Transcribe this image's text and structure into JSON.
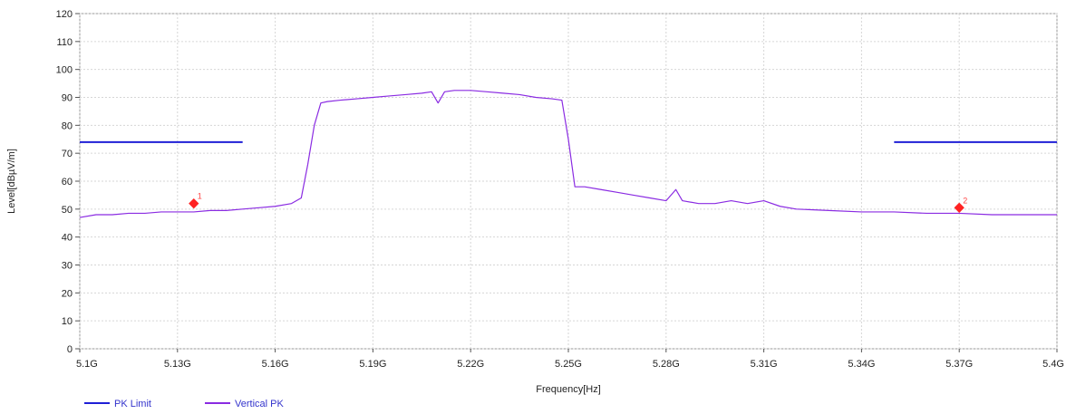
{
  "chart_data": {
    "type": "line",
    "title": "",
    "xlabel": "Frequency[Hz]",
    "ylabel": "Level[dBµV/m]",
    "xlim": [
      5.1,
      5.4
    ],
    "ylim": [
      0,
      120
    ],
    "x_ticks": [
      {
        "value": 5.1,
        "label": "5.1G"
      },
      {
        "value": 5.13,
        "label": "5.13G"
      },
      {
        "value": 5.16,
        "label": "5.16G"
      },
      {
        "value": 5.19,
        "label": "5.19G"
      },
      {
        "value": 5.22,
        "label": "5.22G"
      },
      {
        "value": 5.25,
        "label": "5.25G"
      },
      {
        "value": 5.28,
        "label": "5.28G"
      },
      {
        "value": 5.31,
        "label": "5.31G"
      },
      {
        "value": 5.34,
        "label": "5.34G"
      },
      {
        "value": 5.37,
        "label": "5.37G"
      },
      {
        "value": 5.4,
        "label": "5.4G"
      }
    ],
    "y_ticks": [
      0,
      10,
      20,
      30,
      40,
      50,
      60,
      70,
      80,
      90,
      100,
      110,
      120
    ],
    "grid": true,
    "legend_position": "bottom-left",
    "series": [
      {
        "name": "PK Limit",
        "color": "#1f1fd6",
        "segments": [
          {
            "x": [
              5.1,
              5.15
            ],
            "y": [
              74,
              74
            ]
          },
          {
            "x": [
              5.35,
              5.4
            ],
            "y": [
              74,
              74
            ]
          }
        ]
      },
      {
        "name": "Vertical PK",
        "color": "#8a2be2",
        "x": [
          5.1,
          5.105,
          5.11,
          5.115,
          5.12,
          5.125,
          5.13,
          5.135,
          5.14,
          5.145,
          5.15,
          5.155,
          5.16,
          5.165,
          5.168,
          5.17,
          5.172,
          5.174,
          5.176,
          5.18,
          5.185,
          5.19,
          5.195,
          5.2,
          5.205,
          5.208,
          5.21,
          5.212,
          5.215,
          5.22,
          5.225,
          5.23,
          5.235,
          5.24,
          5.245,
          5.248,
          5.25,
          5.252,
          5.255,
          5.26,
          5.265,
          5.27,
          5.275,
          5.28,
          5.283,
          5.285,
          5.29,
          5.295,
          5.3,
          5.305,
          5.31,
          5.315,
          5.32,
          5.33,
          5.34,
          5.35,
          5.36,
          5.37,
          5.38,
          5.39,
          5.4
        ],
        "y": [
          47,
          48,
          48,
          48.5,
          48.5,
          49,
          49,
          49,
          49.5,
          49.5,
          50,
          50.5,
          51,
          52,
          54,
          66,
          80,
          88,
          88.5,
          89,
          89.5,
          90,
          90.5,
          91,
          91.5,
          92,
          88,
          92,
          92.5,
          92.5,
          92,
          91.5,
          91,
          90,
          89.5,
          89,
          75,
          58,
          58,
          57,
          56,
          55,
          54,
          53,
          57,
          53,
          52,
          52,
          53,
          52,
          53,
          51,
          50,
          49.5,
          49,
          49,
          48.5,
          48.5,
          48,
          48,
          48
        ]
      }
    ],
    "markers": [
      {
        "label": "1",
        "x": 5.135,
        "y": 52,
        "color": "#ff2222"
      },
      {
        "label": "2",
        "x": 5.37,
        "y": 50.5,
        "color": "#ff2222"
      }
    ]
  }
}
